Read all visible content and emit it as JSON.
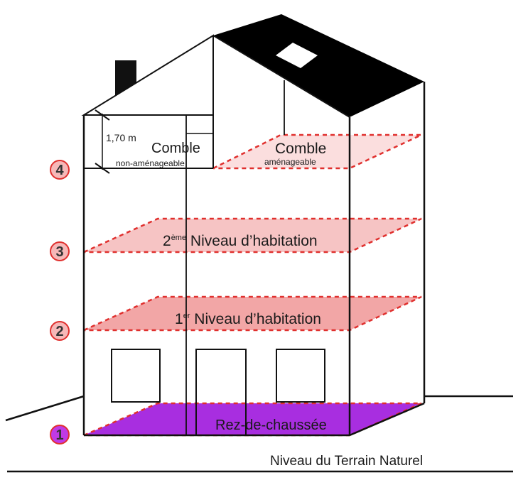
{
  "diagram": {
    "ground_label": "Niveau du Terrain Naturel",
    "attic_left": {
      "title": "Comble",
      "subtitle": "non-aménageable",
      "height_dimension": "1,70 m"
    },
    "attic_right": {
      "title": "Comble",
      "subtitle": "aménageable"
    },
    "floors": [
      {
        "number": "1",
        "label": "Rez-de-chaussée"
      },
      {
        "number": "2",
        "label_prefix": "1",
        "label_sup": "er",
        "label_suffix": " Niveau d’habitation"
      },
      {
        "number": "3",
        "label_prefix": "2",
        "label_sup": "ème",
        "label_suffix": " Niveau d’habitation"
      },
      {
        "number": "4"
      }
    ]
  },
  "colors": {
    "outline": "#111111",
    "roof": "#000000",
    "dashed_border": "#e0302e",
    "ground_floor_fill": "#a82ee0",
    "floor1_fill": "#f2a6a6",
    "floor2_fill": "#f6c4c4",
    "attic_fill": "#fbdede",
    "circle_1_fill": "#c03ae6",
    "circle_fill": "#f6b8b8",
    "circle_stroke": "#e0302e"
  }
}
